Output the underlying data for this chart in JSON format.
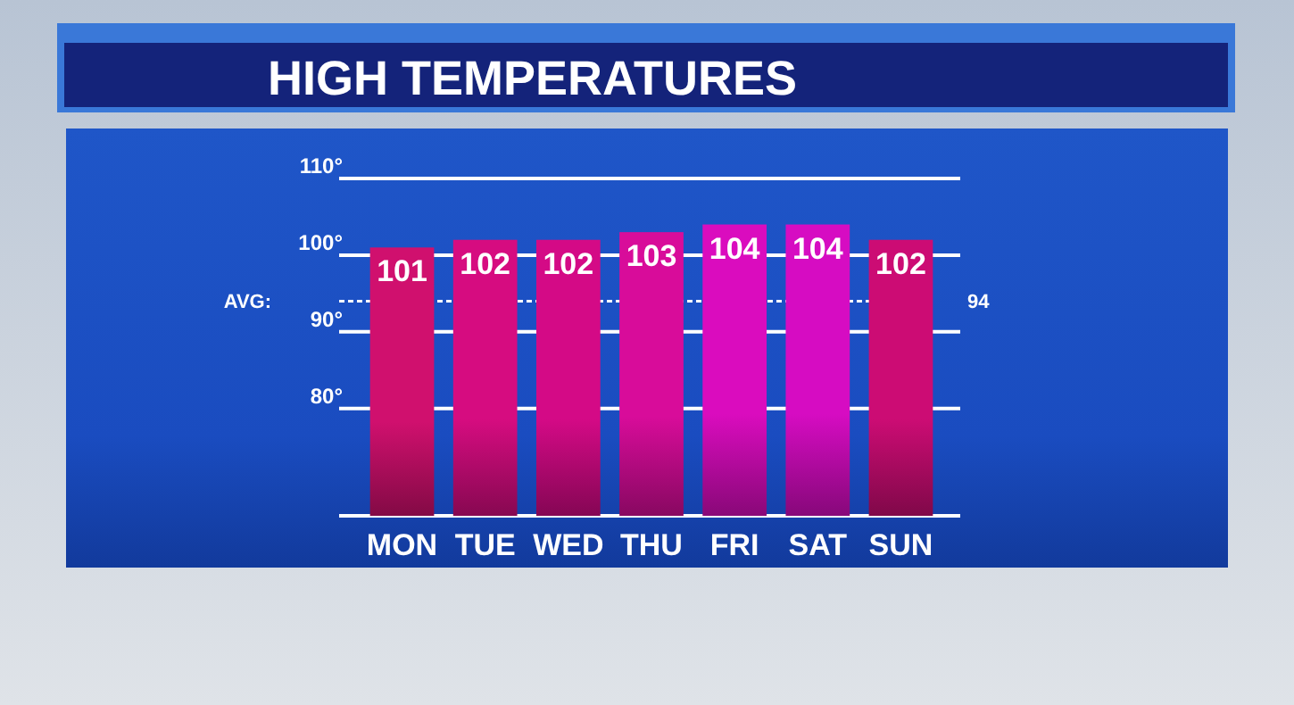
{
  "chart_data": {
    "type": "bar",
    "title": "HIGH TEMPERATURES",
    "categories": [
      "MON",
      "TUE",
      "WED",
      "THU",
      "FRI",
      "SAT",
      "SUN"
    ],
    "values": [
      101,
      102,
      102,
      103,
      104,
      104,
      102
    ],
    "colors": [
      "#d0106e",
      "#d60c80",
      "#d40a86",
      "#d80c9a",
      "#da0cbe",
      "#d60cc2",
      "#cc0c74"
    ],
    "ylim": [
      66,
      110
    ],
    "annotations": [
      "94"
    ],
    "yticks": [
      {
        "value": 80,
        "label": "80°"
      },
      {
        "value": 90,
        "label": "90°"
      },
      {
        "value": 100,
        "label": "100°"
      },
      {
        "value": 110,
        "label": "110°"
      }
    ],
    "grid": "y",
    "data_labels": true,
    "ref_lines": [
      {
        "axis": "y",
        "value": 94,
        "label": "AVG:",
        "line_style": "dashed",
        "color": "#ffffff"
      }
    ]
  }
}
